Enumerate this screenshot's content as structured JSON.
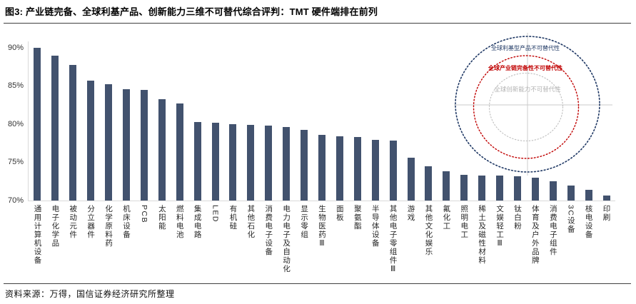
{
  "title": "图3: 产业链完备、全球利基产品、创新能力三维不可替代综合评判：TMT 硬件端排在前列",
  "source": "资料来源：万得，国信证券经济研究所整理",
  "colors": {
    "bar": "#42526E",
    "outer_ring": "#1F3864",
    "middle_ring": "#C00000",
    "inner_ring": "#BDBDBD",
    "crosshair": "#c9c9c9",
    "axis": "#d9d9d9"
  },
  "inset": {
    "outer_label": "全球利基型产品不可替代性",
    "middle_label": "全球产业链完备性不可替代性",
    "inner_label": "全球创新能力不可替代性"
  },
  "chart_data": {
    "type": "bar",
    "title": "产业链完备、全球利基产品、创新能力三维不可替代综合评判",
    "xlabel": "",
    "ylabel": "",
    "ylim": [
      70,
      91
    ],
    "yticks": [
      90,
      85,
      80,
      75,
      70
    ],
    "ytick_format": "percent",
    "grid": false,
    "legend": false,
    "sorted": "descending",
    "categories": [
      "通用计算机设备",
      "电子化学品",
      "被动元件",
      "分立器件",
      "化学原料药",
      "机床设备",
      "PCB",
      "太阳能",
      "燃料电池",
      "集成电路",
      "LED",
      "有机硅",
      "其他石化",
      "消费电子设备",
      "电力电子及自动化",
      "显示零组",
      "生物医药Ⅲ",
      "面板",
      "聚氨酯",
      "半导体设备",
      "其他电子零组件Ⅲ",
      "游戏",
      "其他文化娱乐",
      "氟化工",
      "照明电工",
      "稀土及磁性材料",
      "文娱轻工Ⅲ",
      "钛白粉",
      "体育及户外品牌",
      "消费电子组件",
      "3C设备",
      "核电设备",
      "印刷"
    ],
    "values": [
      90.0,
      89.0,
      87.7,
      85.7,
      85.2,
      84.6,
      84.5,
      83.3,
      82.7,
      80.3,
      80.2,
      80.0,
      79.9,
      79.8,
      79.6,
      79.2,
      78.6,
      78.4,
      78.3,
      77.9,
      77.8,
      75.6,
      74.5,
      73.8,
      73.4,
      73.3,
      73.3,
      73.2,
      73.0,
      72.5,
      72.0,
      71.4,
      70.7
    ]
  }
}
